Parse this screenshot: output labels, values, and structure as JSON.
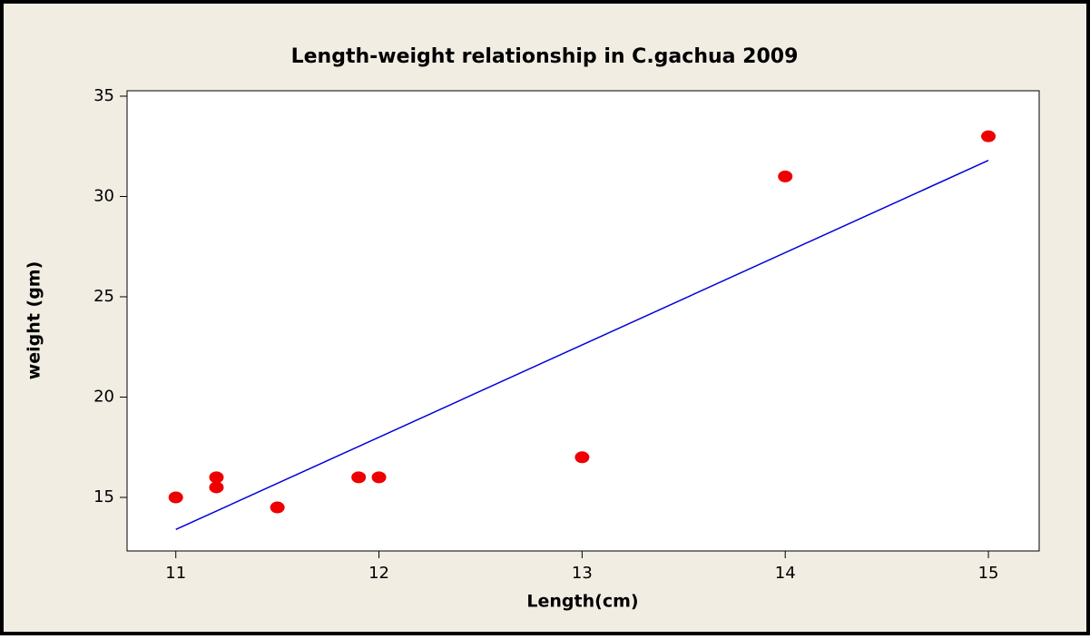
{
  "chart_data": {
    "type": "scatter",
    "title": "Length-weight relationship in C.gachua 2009",
    "xlabel": "Length(cm)",
    "ylabel": "weight (gm)",
    "series": [
      {
        "name": null,
        "color": "#ee0000",
        "x": [
          11,
          11.2,
          11.2,
          11.5,
          11.9,
          12,
          13,
          14,
          15
        ],
        "values": [
          15,
          16,
          15.5,
          14.5,
          16,
          16,
          17,
          31,
          33
        ]
      }
    ],
    "fit": {
      "color": "#0000dd",
      "x": [
        11,
        15
      ],
      "values": [
        13.4,
        31.8
      ]
    },
    "xlim": [
      10.76,
      15.25
    ],
    "xticks": [
      11,
      12,
      13,
      14,
      15
    ],
    "ylim": [
      12.33,
      35.27
    ],
    "yticks": [
      15,
      20,
      25,
      30,
      35
    ],
    "grid": false
  }
}
